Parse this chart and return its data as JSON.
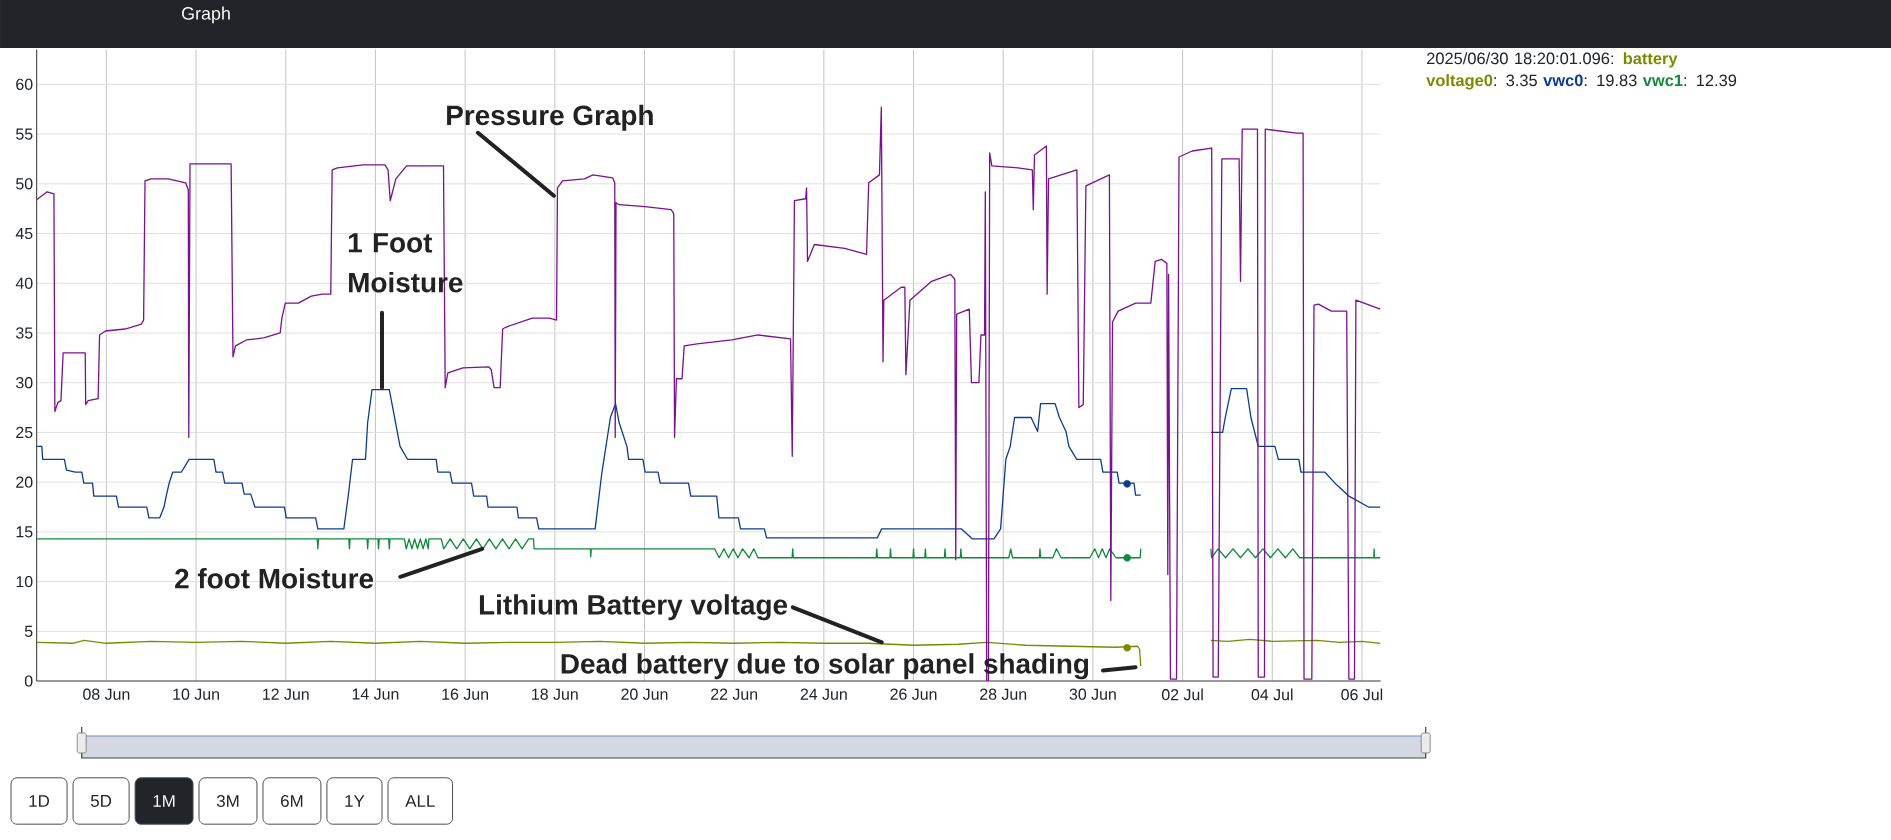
{
  "chart_data": {
    "type": "line",
    "xlim": [
      "2025-06-06T10:40",
      "2025-07-06T10:00"
    ],
    "ylim": [
      0,
      63.5
    ],
    "xticks": [
      {
        "value": "2025-06-08",
        "label": "08 Jun"
      },
      {
        "value": "2025-06-10",
        "label": "10 Jun"
      },
      {
        "value": "2025-06-12",
        "label": "12 Jun"
      },
      {
        "value": "2025-06-14",
        "label": "14 Jun"
      },
      {
        "value": "2025-06-16",
        "label": "16 Jun"
      },
      {
        "value": "2025-06-18",
        "label": "18 Jun"
      },
      {
        "value": "2025-06-20",
        "label": "20 Jun"
      },
      {
        "value": "2025-06-22",
        "label": "22 Jun"
      },
      {
        "value": "2025-06-24",
        "label": "24 Jun"
      },
      {
        "value": "2025-06-26",
        "label": "26 Jun"
      },
      {
        "value": "2025-06-28",
        "label": "28 Jun"
      },
      {
        "value": "2025-06-30",
        "label": "30 Jun"
      },
      {
        "value": "2025-07-02",
        "label": "02 Jul"
      },
      {
        "value": "2025-07-04",
        "label": "04 Jul"
      },
      {
        "value": "2025-07-06",
        "label": "06 Jul"
      }
    ],
    "yticks": [
      0,
      5,
      10,
      15,
      20,
      25,
      30,
      35,
      40,
      45,
      50,
      55,
      60
    ],
    "grid": true,
    "legend": "top right",
    "legend_title": "2025/06/30 18:20:01.096:",
    "series": [
      {
        "name": "battery voltage0",
        "color": "#7a8a00",
        "x": [
          "2025-06-06T10:40",
          "2025-06-07T06:00",
          "2025-06-07T12:00",
          "2025-06-08T00:00",
          "2025-06-09T00:00",
          "2025-06-10T00:00",
          "2025-06-11T00:00",
          "2025-06-12T00:00",
          "2025-06-13T00:00",
          "2025-06-14T00:00",
          "2025-06-15T00:00",
          "2025-06-16T00:00",
          "2025-06-17T00:00",
          "2025-06-18T00:00",
          "2025-06-19T00:00",
          "2025-06-20T00:00",
          "2025-06-21T00:00",
          "2025-06-22T00:00",
          "2025-06-23T00:00",
          "2025-06-24T00:00",
          "2025-06-25T00:00",
          "2025-06-26T00:00",
          "2025-06-27T00:00",
          "2025-06-27T15:00",
          "2025-06-28T12:00",
          "2025-06-29T12:00",
          "2025-06-30T12:00",
          "2025-07-01T00:00",
          "2025-07-01T01:00",
          "2025-07-01T01:35",
          "2025-07-02T00:00",
          "2025-07-02T15:10",
          "2025-07-03T00:00",
          "2025-07-03T12:00",
          "2025-07-04T00:00",
          "2025-07-05T00:00",
          "2025-07-05T12:00",
          "2025-07-06T00:00",
          "2025-07-06T09:50"
        ],
        "values": [
          3.9,
          3.8,
          4.1,
          3.8,
          4.0,
          3.9,
          4.0,
          3.8,
          4.0,
          3.8,
          4.0,
          3.8,
          3.9,
          3.9,
          4.0,
          3.8,
          3.9,
          3.8,
          3.9,
          3.8,
          3.8,
          3.6,
          3.7,
          3.9,
          3.6,
          3.5,
          3.4,
          3.5,
          3.2,
          1.5,
          null,
          4.1,
          4.0,
          4.2,
          4.0,
          4.1,
          3.9,
          4.0,
          3.8
        ]
      },
      {
        "name": "vwc0",
        "color": "#0c3c8f",
        "x": [
          "2025-06-06T10:40",
          "2025-06-06T13:25",
          "2025-06-06T13:55",
          "2025-06-07T01:30",
          "2025-06-07T02:40",
          "2025-06-07T07:20",
          "2025-06-07T10:50",
          "2025-06-07T11:55",
          "2025-06-07T16:35",
          "2025-06-07T17:15",
          "2025-06-08T05:20",
          "2025-06-08T06:30",
          "2025-06-08T21:35",
          "2025-06-08T22:45",
          "2025-06-09T04:30",
          "2025-06-09T06:50",
          "2025-06-09T08:00",
          "2025-06-09T09:35",
          "2025-06-09T11:30",
          "2025-06-09T16:05",
          "2025-06-09T20:15",
          "2025-06-10T09:30",
          "2025-06-10T10:40",
          "2025-06-10T14:10",
          "2025-06-10T15:20",
          "2025-06-11T00:35",
          "2025-06-11T01:45",
          "2025-06-11T05:15",
          "2025-06-11T07:30",
          "2025-06-11T23:20",
          "2025-06-12T00:15",
          "2025-06-12T16:00",
          "2025-06-12T17:10",
          "2025-06-13T07:05",
          "2025-06-13T09:25",
          "2025-06-13T11:45",
          "2025-06-13T18:40",
          "2025-06-13T19:50",
          "2025-06-13T22:10",
          "2025-06-14T07:25",
          "2025-06-14T13:10",
          "2025-06-14T17:10",
          "2025-06-15T08:30",
          "2025-06-15T09:25",
          "2025-06-15T15:55",
          "2025-06-15T17:05",
          "2025-06-16T03:25",
          "2025-06-16T04:35",
          "2025-06-16T11:30",
          "2025-06-16T12:15",
          "2025-06-17T03:45",
          "2025-06-17T04:30",
          "2025-06-17T14:15",
          "2025-06-17T15:25",
          "2025-06-18T21:35",
          "2025-06-19T01:05",
          "2025-06-19T05:45",
          "2025-06-19T08:30",
          "2025-06-19T10:25",
          "2025-06-19T14:35",
          "2025-06-19T15:30",
          "2025-06-19T23:10",
          "2025-06-20T00:20",
          "2025-06-20T07:15",
          "2025-06-20T08:25",
          "2025-06-20T23:35",
          "2025-06-21T00:45",
          "2025-06-21T14:40",
          "2025-06-21T15:50",
          "2025-06-22T02:15",
          "2025-06-22T03:25",
          "2025-06-22T16:10",
          "2025-06-22T17:20",
          "2025-06-25T04:35",
          "2025-06-25T06:55",
          "2025-06-27T01:40",
          "2025-06-27T07:25",
          "2025-06-27T19:05",
          "2025-06-27T22:35",
          "2025-06-28T01:25",
          "2025-06-28T03:45",
          "2025-06-28T06:05",
          "2025-06-28T14:55",
          "2025-06-28T18:25",
          "2025-06-28T20:00",
          "2025-06-29T03:45",
          "2025-06-29T06:05",
          "2025-06-29T09:35",
          "2025-06-29T11:10",
          "2025-06-29T15:20",
          "2025-06-30T04:10",
          "2025-06-30T05:20",
          "2025-06-30T13:00",
          "2025-06-30T14:00",
          "2025-06-30T22:00",
          "2025-06-30T22:50",
          "2025-07-01T01:35",
          "2025-07-02T00:00",
          "2025-07-02T15:10",
          "2025-07-02T21:25",
          "2025-07-02T22:50",
          "2025-07-03T02:05",
          "2025-07-03T10:15",
          "2025-07-03T12:35",
          "2025-07-03T16:30",
          "2025-07-04T01:25",
          "2025-07-04T03:15",
          "2025-07-04T14:15",
          "2025-07-04T15:20",
          "2025-07-05T04:10",
          "2025-07-05T09:35",
          "2025-07-05T17:00",
          "2025-07-06T03:30",
          "2025-07-06T09:50"
        ],
        "values": [
          23.6,
          23.6,
          22.3,
          22.3,
          21.2,
          21.0,
          21.0,
          19.9,
          19.9,
          18.6,
          18.6,
          17.5,
          17.5,
          16.4,
          16.4,
          17.5,
          18.6,
          19.9,
          21.0,
          21.0,
          22.3,
          22.3,
          21.0,
          21.0,
          19.9,
          19.9,
          18.8,
          18.8,
          17.5,
          17.5,
          16.4,
          16.4,
          15.3,
          15.3,
          18.6,
          22.3,
          22.3,
          26.0,
          29.3,
          29.3,
          23.6,
          22.3,
          22.3,
          21.0,
          21.0,
          19.9,
          19.9,
          18.6,
          18.6,
          17.5,
          17.5,
          16.4,
          16.4,
          15.3,
          15.3,
          20.8,
          26.5,
          27.9,
          26.0,
          23.6,
          22.3,
          22.3,
          21.0,
          21.0,
          19.9,
          19.9,
          18.6,
          18.6,
          16.4,
          16.4,
          15.3,
          15.3,
          14.4,
          14.4,
          15.3,
          15.3,
          14.3,
          14.3,
          15.3,
          22.3,
          23.6,
          26.5,
          26.5,
          25.1,
          27.9,
          27.9,
          26.5,
          25.1,
          23.6,
          22.3,
          22.3,
          21.0,
          21.0,
          19.9,
          19.9,
          18.7,
          18.7,
          null,
          25.0,
          25.0,
          26.5,
          29.4,
          29.4,
          26.5,
          23.6,
          23.6,
          22.3,
          22.3,
          21.0,
          21.0,
          19.9,
          18.6,
          17.5,
          17.5
        ]
      },
      {
        "name": "vwc1",
        "color": "#108a3a",
        "x": [
          "2025-06-06T10:40",
          "2025-06-12T16:50",
          "2025-06-12T17:10",
          "2025-06-12T17:30",
          "2025-06-13T09:45",
          "2025-06-13T10:05",
          "2025-06-13T10:25",
          "2025-06-13T19:30",
          "2025-06-13T19:50",
          "2025-06-13T20:10",
          "2025-06-14T01:20",
          "2025-06-14T01:40",
          "2025-06-14T02:00",
          "2025-06-14T07:05",
          "2025-06-14T07:25",
          "2025-06-14T07:45",
          "2025-06-14T15:30",
          "2025-06-14T16:30",
          "2025-06-14T18:00",
          "2025-06-14T19:30",
          "2025-06-14T21:00",
          "2025-06-14T22:30",
          "2025-06-15T00:00",
          "2025-06-15T01:30",
          "2025-06-15T03:00",
          "2025-06-15T04:15",
          "2025-06-15T04:35",
          "2025-06-15T11:15",
          "2025-06-15T12:30",
          "2025-06-15T16:00",
          "2025-06-15T19:30",
          "2025-06-15T23:00",
          "2025-06-16T02:30",
          "2025-06-16T06:00",
          "2025-06-16T09:30",
          "2025-06-16T13:00",
          "2025-06-16T16:30",
          "2025-06-16T20:00",
          "2025-06-16T23:30",
          "2025-06-17T03:00",
          "2025-06-17T06:30",
          "2025-06-17T10:00",
          "2025-06-17T12:35",
          "2025-06-17T12:55",
          "2025-06-18T19:00",
          "2025-06-18T19:15",
          "2025-06-18T19:30",
          "2025-06-21T13:30",
          "2025-06-21T16:00",
          "2025-06-21T18:30",
          "2025-06-21T21:00",
          "2025-06-21T23:30",
          "2025-06-22T02:00",
          "2025-06-22T04:30",
          "2025-06-22T08:00",
          "2025-06-22T10:30",
          "2025-06-22T12:45",
          "2025-06-23T07:00",
          "2025-06-23T07:20",
          "2025-06-23T07:40",
          "2025-06-25T04:00",
          "2025-06-25T04:20",
          "2025-06-25T04:40",
          "2025-06-25T11:20",
          "2025-06-25T11:40",
          "2025-06-25T12:00",
          "2025-06-25T23:40",
          "2025-06-26T00:00",
          "2025-06-26T00:20",
          "2025-06-26T06:00",
          "2025-06-26T06:20",
          "2025-06-26T06:40",
          "2025-06-26T16:30",
          "2025-06-26T16:50",
          "2025-06-26T17:10",
          "2025-06-27T01:00",
          "2025-06-27T01:20",
          "2025-06-27T01:40",
          "2025-06-28T03:00",
          "2025-06-28T04:00",
          "2025-06-28T05:00",
          "2025-06-28T19:20",
          "2025-06-28T19:40",
          "2025-06-28T20:00",
          "2025-06-29T02:30",
          "2025-06-29T04:30",
          "2025-06-29T07:00",
          "2025-06-29T22:20",
          "2025-06-30T01:00",
          "2025-06-30T03:00",
          "2025-06-30T05:00",
          "2025-06-30T07:00",
          "2025-06-30T09:00",
          "2025-06-30T12:20",
          "2025-07-01T01:20",
          "2025-07-01T01:35",
          "2025-07-02T00:00",
          "2025-07-02T15:10",
          "2025-07-02T15:30",
          "2025-07-02T19:00",
          "2025-07-02T23:00",
          "2025-07-03T03:00",
          "2025-07-03T07:00",
          "2025-07-03T11:00",
          "2025-07-03T15:00",
          "2025-07-03T19:00",
          "2025-07-03T23:00",
          "2025-07-04T03:00",
          "2025-07-04T07:00",
          "2025-07-04T11:00",
          "2025-07-04T14:40",
          "2025-07-06T06:20",
          "2025-07-06T06:30",
          "2025-07-06T06:40",
          "2025-07-06T09:50"
        ],
        "values": [
          14.3,
          14.3,
          13.3,
          14.3,
          14.3,
          13.3,
          14.3,
          14.3,
          13.3,
          14.3,
          14.3,
          13.3,
          14.3,
          14.3,
          13.3,
          14.3,
          14.3,
          13.3,
          14.3,
          13.3,
          14.3,
          13.3,
          14.3,
          13.3,
          14.3,
          13.3,
          14.3,
          14.3,
          13.3,
          14.3,
          13.3,
          14.3,
          13.3,
          14.3,
          13.3,
          14.3,
          13.3,
          14.3,
          13.3,
          14.3,
          13.3,
          14.3,
          14.3,
          13.3,
          13.3,
          12.5,
          13.3,
          13.3,
          12.4,
          13.3,
          12.4,
          13.3,
          12.4,
          13.3,
          12.4,
          13.3,
          12.4,
          12.4,
          13.3,
          12.4,
          12.4,
          13.3,
          12.4,
          12.4,
          13.3,
          12.4,
          12.4,
          13.3,
          12.4,
          12.4,
          13.3,
          12.4,
          12.4,
          13.3,
          12.4,
          12.4,
          13.3,
          12.4,
          12.4,
          13.3,
          12.4,
          12.4,
          13.3,
          12.4,
          12.4,
          13.3,
          12.4,
          12.4,
          13.3,
          12.4,
          13.3,
          12.4,
          13.3,
          12.4,
          12.4,
          13.3,
          null,
          13.3,
          12.4,
          13.3,
          12.4,
          13.3,
          12.4,
          13.3,
          12.4,
          13.3,
          12.4,
          13.3,
          12.4,
          13.3,
          12.4,
          12.4,
          13.3,
          12.4,
          12.4
        ]
      },
      {
        "color": "#7b118f",
        "x": [
          "2025-06-06T10:40",
          "2025-06-06T16:15",
          "2025-06-06T19:55",
          "2025-06-06T20:25",
          "2025-06-06T22:00",
          "2025-06-06T23:40",
          "2025-06-07T00:50",
          "2025-06-07T12:40",
          "2025-06-07T12:55",
          "2025-06-07T14:15",
          "2025-06-07T19:35",
          "2025-06-07T20:20",
          "2025-06-07T23:30",
          "2025-06-08T10:00",
          "2025-06-08T18:45",
          "2025-06-08T19:55",
          "2025-06-08T20:40",
          "2025-06-08T23:55",
          "2025-06-09T09:10",
          "2025-06-09T18:25",
          "2025-06-09T19:50",
          "2025-06-09T20:05",
          "2025-06-09T20:45",
          "2025-06-10T08:20",
          "2025-06-10T18:45",
          "2025-06-10T19:45",
          "2025-06-10T21:05",
          "2025-06-11T02:55",
          "2025-06-11T12:10",
          "2025-06-11T21:00",
          "2025-06-11T21:55",
          "2025-06-11T23:45",
          "2025-06-12T06:45",
          "2025-06-12T13:40",
          "2025-06-12T19:30",
          "2025-06-13T00:05",
          "2025-06-13T00:50",
          "2025-06-13T03:35",
          "2025-06-13T17:30",
          "2025-06-14T05:05",
          "2025-06-14T06:45",
          "2025-06-14T07:55",
          "2025-06-14T10:55",
          "2025-06-14T16:40",
          "2025-06-15T12:25",
          "2025-06-15T13:20",
          "2025-06-15T14:45",
          "2025-06-15T22:50",
          "2025-06-16T12:40",
          "2025-06-16T14:00",
          "2025-06-16T15:30",
          "2025-06-16T18:45",
          "2025-06-16T20:05",
          "2025-06-16T22:00",
          "2025-06-17T11:55",
          "2025-06-17T21:10",
          "2025-06-18T00:55",
          "2025-06-18T01:25",
          "2025-06-18T04:10",
          "2025-06-18T15:50",
          "2025-06-18T20:25",
          "2025-06-19T06:55",
          "2025-06-19T08:05",
          "2025-06-19T08:20",
          "2025-06-19T08:45",
          "2025-06-19T10:25",
          "2025-06-20T00:20",
          "2025-06-20T14:15",
          "2025-06-20T15:40",
          "2025-06-20T16:05",
          "2025-06-20T17:05",
          "2025-06-20T20:05",
          "2025-06-20T21:15",
          "2025-06-21T04:10",
          "2025-06-21T22:45",
          "2025-06-22T12:45",
          "2025-06-23T06:10",
          "2025-06-23T07:05",
          "2025-06-23T08:15",
          "2025-06-23T14:15",
          "2025-06-23T14:45",
          "2025-06-23T15:15",
          "2025-06-23T18:55",
          "2025-06-24T11:10",
          "2025-06-24T22:50",
          "2025-06-25T00:00",
          "2025-06-25T05:45",
          "2025-06-25T06:45",
          "2025-06-25T07:40",
          "2025-06-25T08:05",
          "2025-06-25T17:25",
          "2025-06-25T19:20",
          "2025-06-25T19:55",
          "2025-06-25T22:05",
          "2025-06-26T09:40",
          "2025-06-26T19:50",
          "2025-06-26T22:05",
          "2025-06-26T22:35",
          "2025-06-26T23:05",
          "2025-06-27T05:50",
          "2025-06-27T07:00",
          "2025-06-27T11:00",
          "2025-06-27T12:05",
          "2025-06-27T14:00",
          "2025-06-27T14:25",
          "2025-06-27T15:10",
          "2025-06-27T16:05",
          "2025-06-27T16:45",
          "2025-06-27T17:55",
          "2025-06-28T07:55",
          "2025-06-28T15:35",
          "2025-06-28T16:05",
          "2025-06-28T16:45",
          "2025-06-28T23:05",
          "2025-06-28T23:30",
          "2025-06-29T00:15",
          "2025-06-29T15:25",
          "2025-06-29T16:30",
          "2025-06-29T18:50",
          "2025-06-29T20:15",
          "2025-06-30T08:50",
          "2025-06-30T09:35",
          "2025-06-30T10:30",
          "2025-06-30T13:30",
          "2025-06-30T22:50",
          "2025-07-01T07:00",
          "2025-07-01T09:20",
          "2025-07-01T12:50",
          "2025-07-01T15:35",
          "2025-07-01T16:05",
          "2025-07-01T16:30",
          "2025-07-01T17:30",
          "2025-07-01T20:45",
          "2025-07-01T22:05",
          "2025-07-02T05:05",
          "2025-07-02T15:35",
          "2025-07-02T16:20",
          "2025-07-02T19:05",
          "2025-07-02T21:00",
          "2025-07-03T06:15",
          "2025-07-03T07:00",
          "2025-07-03T07:55",
          "2025-07-03T16:05",
          "2025-07-03T16:30",
          "2025-07-03T19:50",
          "2025-07-03T20:15",
          "2025-07-04T13:00",
          "2025-07-04T16:30",
          "2025-07-04T17:00",
          "2025-07-04T21:10",
          "2025-07-04T22:20",
          "2025-07-05T00:40",
          "2025-07-05T07:40",
          "2025-07-05T15:50",
          "2025-07-05T17:00",
          "2025-07-05T20:00",
          "2025-07-05T20:45",
          "2025-07-06T09:50"
        ],
        "values": [
          48.4,
          49.2,
          49.0,
          27.1,
          28.0,
          28.2,
          33.0,
          33.0,
          27.8,
          28.2,
          28.4,
          34.8,
          35.2,
          35.4,
          35.9,
          36.3,
          50.3,
          50.5,
          50.5,
          50.1,
          49.4,
          24.5,
          52.0,
          52.0,
          52.0,
          32.6,
          33.7,
          34.3,
          34.5,
          35.0,
          36.5,
          38.0,
          38.0,
          38.7,
          38.9,
          38.9,
          51.4,
          51.6,
          51.9,
          51.9,
          51.4,
          48.3,
          50.5,
          51.8,
          51.8,
          29.5,
          31.0,
          31.5,
          31.6,
          31.3,
          29.5,
          29.5,
          35.4,
          35.6,
          36.5,
          36.5,
          36.3,
          49.6,
          50.3,
          50.5,
          50.9,
          50.6,
          50.1,
          24.5,
          48.1,
          47.9,
          47.7,
          47.4,
          47.0,
          24.5,
          30.4,
          30.4,
          33.7,
          33.9,
          34.3,
          34.8,
          34.4,
          22.6,
          48.3,
          48.5,
          49.6,
          42.2,
          43.9,
          43.5,
          42.9,
          50.1,
          50.9,
          57.7,
          32.1,
          38.3,
          39.6,
          39.6,
          30.8,
          38.3,
          40.2,
          40.9,
          40.4,
          12.2,
          36.9,
          37.4,
          30.0,
          30.0,
          34.8,
          34.8,
          49.2,
          0,
          0,
          53.1,
          51.8,
          51.6,
          51.4,
          47.4,
          52.9,
          53.8,
          38.9,
          50.5,
          51.4,
          27.5,
          27.8,
          49.8,
          50.9,
          8.1,
          36.1,
          37.2,
          38.0,
          38.0,
          42.2,
          42.4,
          42.0,
          10.7,
          40.9,
          0.2,
          0.2,
          52.7,
          53.3,
          53.6,
          0.4,
          0.4,
          52.5,
          52.5,
          40.2,
          55.5,
          55.5,
          0.4,
          0.4,
          55.5,
          55.1,
          55.1,
          0.2,
          0.2,
          37.8,
          37.9,
          37.2,
          37.2,
          0.2,
          0.2,
          38.3,
          37.4
        ]
      },
      {
        "type": "scatter",
        "marker": "circle",
        "x": [
          "2025-06-30T18:20",
          "2025-06-30T18:20",
          "2025-06-30T18:20"
        ],
        "values": [
          3.35,
          19.83,
          12.39
        ],
        "colors": [
          "#7a8a00",
          "#0c3c8f",
          "#108a3a"
        ]
      }
    ],
    "annotations": [
      {
        "text": "Pressure Graph",
        "x": "2025-06-17T23:30",
        "y": 48.8
      },
      {
        "text": "1 Foot Moisture",
        "x": "2025-06-14T03:30",
        "y": 29.5
      },
      {
        "text": "2 foot Moisture",
        "x": "2025-06-16T09:10",
        "y": 13.3
      },
      {
        "text": "Lithium Battery voltage",
        "x": "2025-06-25T07:00",
        "y": 3.9
      },
      {
        "text": "Dead battery due to solar panel shading",
        "x": "2025-06-30T22:50",
        "y": 1.4
      },
      "Graph",
      ": 3.35",
      ": 19.83",
      ": 12.39",
      "1D",
      "5D",
      "1M",
      "3M",
      "6M",
      "1Y",
      "ALL"
    ]
  }
}
